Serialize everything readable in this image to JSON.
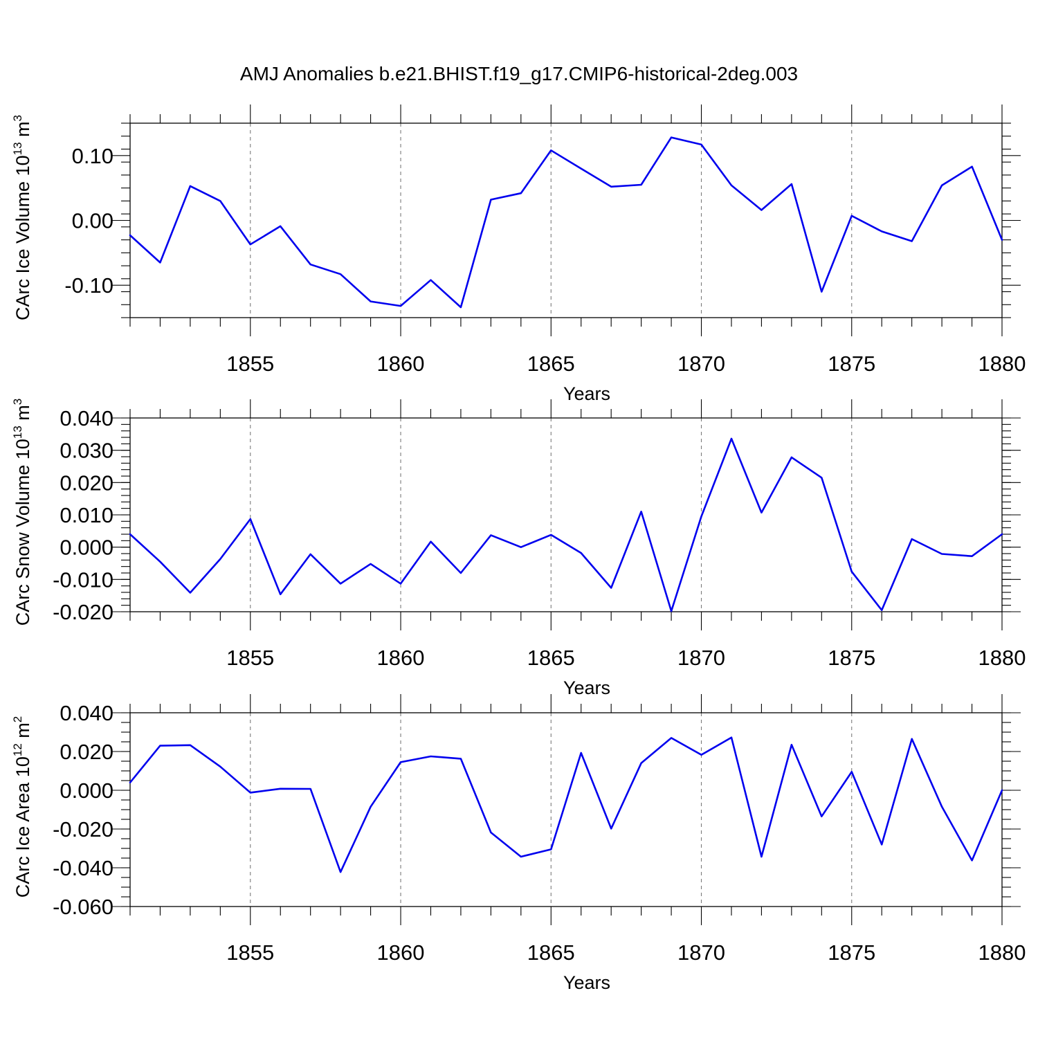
{
  "title": "AMJ Anomalies b.e21.BHIST.f19_g17.CMIP6-historical-2deg.003",
  "colors": {
    "series": "#0000ee",
    "grid": "#7a7a7a",
    "axis": "#000000"
  },
  "chart_data": [
    {
      "type": "line",
      "ylabel_main": "CArc Ice Volume 10",
      "ylabel_exp": "13",
      "ylabel_unit": " m",
      "ylabel_unit_exp": "3",
      "xlabel": "Years",
      "xlim": [
        1851,
        1880
      ],
      "ylim": [
        -0.15,
        0.15
      ],
      "x_major_ticks": [
        1855,
        1860,
        1865,
        1870,
        1875,
        1880
      ],
      "x_tick_labels": [
        "1855",
        "1860",
        "1865",
        "1870",
        "1875",
        "1880"
      ],
      "y_major_ticks": [
        0.1,
        0.0,
        -0.1
      ],
      "y_tick_labels": [
        "0.10",
        "0.00",
        "-0.10"
      ],
      "y_minor_step": 0.02,
      "grid": "dashed vertical at major x ticks",
      "x": [
        1851,
        1852,
        1853,
        1854,
        1855,
        1856,
        1857,
        1858,
        1859,
        1860,
        1861,
        1862,
        1863,
        1864,
        1865,
        1866,
        1867,
        1868,
        1869,
        1870,
        1871,
        1872,
        1873,
        1874,
        1875,
        1876,
        1877,
        1878,
        1879,
        1880
      ],
      "values": [
        -0.023,
        -0.065,
        0.053,
        0.03,
        -0.037,
        -0.009,
        -0.068,
        -0.083,
        -0.125,
        -0.132,
        -0.092,
        -0.134,
        0.032,
        0.042,
        0.108,
        0.08,
        0.052,
        0.055,
        0.128,
        0.117,
        0.054,
        0.016,
        0.056,
        -0.11,
        0.007,
        -0.017,
        -0.032,
        0.054,
        0.083,
        -0.03
      ]
    },
    {
      "type": "line",
      "ylabel_main": "CArc Snow Volume 10",
      "ylabel_exp": "13",
      "ylabel_unit": " m",
      "ylabel_unit_exp": "3",
      "xlabel": "Years",
      "xlim": [
        1851,
        1880
      ],
      "ylim": [
        -0.02,
        0.04
      ],
      "x_major_ticks": [
        1855,
        1860,
        1865,
        1870,
        1875,
        1880
      ],
      "x_tick_labels": [
        "1855",
        "1860",
        "1865",
        "1870",
        "1875",
        "1880"
      ],
      "y_major_ticks": [
        0.04,
        0.03,
        0.02,
        0.01,
        0.0,
        -0.01,
        -0.02
      ],
      "y_tick_labels": [
        "0.040",
        "0.030",
        "0.020",
        "0.010",
        "0.000",
        "-0.010",
        "-0.020"
      ],
      "y_minor_step": 0.002,
      "grid": "dashed vertical at major x ticks",
      "x": [
        1851,
        1852,
        1853,
        1854,
        1855,
        1856,
        1857,
        1858,
        1859,
        1860,
        1861,
        1862,
        1863,
        1864,
        1865,
        1866,
        1867,
        1868,
        1869,
        1870,
        1871,
        1872,
        1873,
        1874,
        1875,
        1876,
        1877,
        1878,
        1879,
        1880
      ],
      "values": [
        0.004,
        -0.0045,
        -0.0141,
        -0.0037,
        0.0087,
        -0.0146,
        -0.0022,
        -0.0113,
        -0.0052,
        -0.0113,
        0.0017,
        -0.008,
        0.0037,
        0.0,
        0.0038,
        -0.0018,
        -0.0126,
        0.011,
        -0.0198,
        0.0095,
        0.0336,
        0.0107,
        0.0278,
        0.0215,
        -0.0076,
        -0.0195,
        0.0025,
        -0.0021,
        -0.0028,
        0.004
      ]
    },
    {
      "type": "line",
      "ylabel_main": "CArc Ice Area 10",
      "ylabel_exp": "12",
      "ylabel_unit": " m",
      "ylabel_unit_exp": "2",
      "xlabel": "Years",
      "xlim": [
        1851,
        1880
      ],
      "ylim": [
        -0.06,
        0.04
      ],
      "x_major_ticks": [
        1855,
        1860,
        1865,
        1870,
        1875,
        1880
      ],
      "x_tick_labels": [
        "1855",
        "1860",
        "1865",
        "1870",
        "1875",
        "1880"
      ],
      "y_major_ticks": [
        0.04,
        0.02,
        0.0,
        -0.02,
        -0.04,
        -0.06
      ],
      "y_tick_labels": [
        "0.040",
        "0.020",
        "0.000",
        "-0.020",
        "-0.040",
        "-0.060"
      ],
      "y_minor_step": 0.005,
      "grid": "dashed vertical at major x ticks",
      "x": [
        1851,
        1852,
        1853,
        1854,
        1855,
        1856,
        1857,
        1858,
        1859,
        1860,
        1861,
        1862,
        1863,
        1864,
        1865,
        1866,
        1867,
        1868,
        1869,
        1870,
        1871,
        1872,
        1873,
        1874,
        1875,
        1876,
        1877,
        1878,
        1879,
        1880
      ],
      "values": [
        0.004,
        0.023,
        0.0233,
        0.0122,
        -0.0012,
        0.0008,
        0.0007,
        -0.0422,
        -0.0085,
        0.0145,
        0.0175,
        0.0163,
        -0.0218,
        -0.0343,
        -0.0305,
        0.0193,
        -0.0198,
        0.014,
        0.027,
        0.0183,
        0.0272,
        -0.0343,
        0.0235,
        -0.0135,
        0.0095,
        -0.028,
        0.0265,
        -0.0085,
        -0.0362,
        0.0
      ]
    }
  ]
}
